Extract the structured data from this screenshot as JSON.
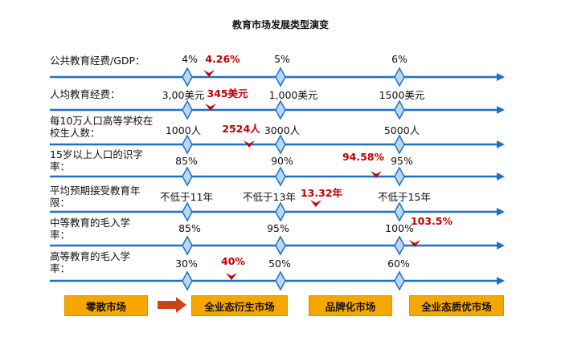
{
  "title": "教育市场发展类型演变",
  "colors": {
    "line": "#1f6fc6",
    "diamond_fill": "#bcd7f2",
    "current": "#c00000",
    "stage_bg": "#f5a700",
    "arrow": "#c8451a"
  },
  "rows": [
    {
      "label": "公共教育经费/GDP：",
      "values": [
        "4%",
        "5%",
        "6%"
      ],
      "current": {
        "text": "4.26%"
      }
    },
    {
      "label": "人均教育经费：",
      "values": [
        "3,00美元",
        "1,000美元",
        "1500美元"
      ],
      "current": {
        "text": "345美元"
      }
    },
    {
      "label": "每10万人口高等学校在校生人数：",
      "values": [
        "1000人",
        "3000人",
        "5000人"
      ],
      "current": {
        "text": "2524人"
      }
    },
    {
      "label": "15岁以上人口的识字率：",
      "values": [
        "85%",
        "90%",
        "95%"
      ],
      "current": {
        "text": "94.58%"
      }
    },
    {
      "label": "平均预期接受教育年限：",
      "values": [
        "不低于11年",
        "不低于13年",
        "不低于15年"
      ],
      "current": {
        "text": "13.32年"
      }
    },
    {
      "label": "中等教育的毛入学率：",
      "values": [
        "85%",
        "95%",
        "100%"
      ],
      "current": {
        "text": "103.5%"
      }
    },
    {
      "label": "高等教育的毛入学率：",
      "values": [
        "30%",
        "50%",
        "60%"
      ],
      "current": {
        "text": "40%"
      }
    }
  ],
  "stages": [
    "零散市场",
    "全业态衍生市场",
    "品牌化市场",
    "全业态质优市场"
  ]
}
